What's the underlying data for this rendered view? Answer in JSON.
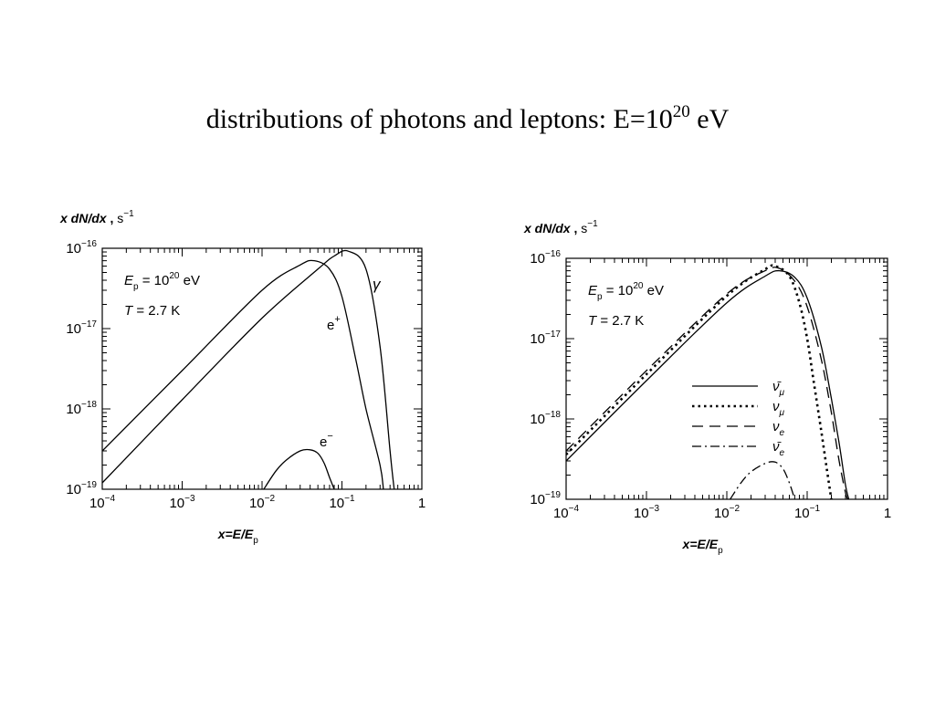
{
  "slide": {
    "title_prefix": "distributions of photons and leptons: E=10",
    "title_exp": "20",
    "title_suffix": " eV"
  },
  "chart_data": [
    {
      "type": "line",
      "ylabel": {
        "var": "x dN/dx",
        "sep": " , ",
        "unit_base": "s",
        "unit_exp": "−1"
      },
      "xlabel": {
        "var": "x=E/E",
        "sub": "p"
      },
      "x_log": true,
      "y_log": true,
      "xlim": [
        0.0001,
        1
      ],
      "ylim": [
        1e-19,
        1e-16
      ],
      "x_ticks": [
        {
          "base": "10",
          "exp": "−4"
        },
        {
          "base": "10",
          "exp": "−3"
        },
        {
          "base": "10",
          "exp": "−2"
        },
        {
          "base": "10",
          "exp": "−1"
        },
        {
          "base": "1",
          "exp": ""
        }
      ],
      "y_ticks": [
        {
          "base": "10",
          "exp": "−16"
        },
        {
          "base": "10",
          "exp": "−17"
        },
        {
          "base": "10",
          "exp": "−18"
        },
        {
          "base": "10",
          "exp": "−19"
        }
      ],
      "annotation": {
        "line1": {
          "var": "E",
          "sub": "p",
          "eq": " = 10",
          "exp": "20",
          "unit": " eV"
        },
        "line2": {
          "var": "T",
          "eq": " = 2.7 K"
        }
      },
      "series": [
        {
          "name": "γ",
          "label_base": "γ",
          "label_sup": "",
          "style": "solid",
          "x": [
            0.0001,
            0.001,
            0.01,
            0.05,
            0.08,
            0.12,
            0.2,
            0.3,
            0.4,
            0.45
          ],
          "y": [
            1.2e-19,
            1.3e-18,
            1.35e-17,
            5.5e-17,
            8e-17,
            9.2e-17,
            5.5e-17,
            6e-18,
            3e-19,
            1e-19
          ]
        },
        {
          "name": "e+",
          "label_base": "e",
          "label_sup": "+",
          "style": "solid",
          "x": [
            0.0001,
            0.001,
            0.01,
            0.03,
            0.045,
            0.07,
            0.1,
            0.15,
            0.2,
            0.3,
            0.33
          ],
          "y": [
            3e-19,
            3e-18,
            3e-17,
            6.2e-17,
            7e-17,
            5.5e-17,
            2.5e-17,
            4e-18,
            1e-18,
            2e-19,
            1e-19
          ]
        },
        {
          "name": "e−",
          "label_base": "e",
          "label_sup": "−",
          "style": "solid",
          "x": [
            0.0105,
            0.015,
            0.02,
            0.03,
            0.04,
            0.05,
            0.06,
            0.07,
            0.08
          ],
          "y": [
            1e-19,
            1.7e-19,
            2.3e-19,
            3e-19,
            3.1e-19,
            2.8e-19,
            2.1e-19,
            1.4e-19,
            1e-19
          ]
        }
      ]
    },
    {
      "type": "line",
      "ylabel": {
        "var": "x dN/dx",
        "sep": " , ",
        "unit_base": "s",
        "unit_exp": "−1"
      },
      "xlabel": {
        "var": "x=E/E",
        "sub": "p"
      },
      "x_log": true,
      "y_log": true,
      "xlim": [
        0.0001,
        1
      ],
      "ylim": [
        1e-19,
        1e-16
      ],
      "x_ticks": [
        {
          "base": "10",
          "exp": "−4"
        },
        {
          "base": "10",
          "exp": "−3"
        },
        {
          "base": "10",
          "exp": "−2"
        },
        {
          "base": "10",
          "exp": "−1"
        },
        {
          "base": "1",
          "exp": ""
        }
      ],
      "y_ticks": [
        {
          "base": "10",
          "exp": "−16"
        },
        {
          "base": "10",
          "exp": "−17"
        },
        {
          "base": "10",
          "exp": "−18"
        },
        {
          "base": "10",
          "exp": "−19"
        }
      ],
      "annotation": {
        "line1": {
          "var": "E",
          "sub": "p",
          "eq": " = 10",
          "exp": "20",
          "unit": " eV"
        },
        "line2": {
          "var": "T",
          "eq": " = 2.7 K"
        }
      },
      "legend_position": "center-right",
      "series": [
        {
          "name": "ν̄μ",
          "label_base": "ν̄",
          "label_sub": "μ",
          "style": "solid",
          "x": [
            0.0001,
            0.001,
            0.01,
            0.03,
            0.045,
            0.07,
            0.1,
            0.15,
            0.2,
            0.25,
            0.3,
            0.33
          ],
          "y": [
            3e-19,
            3e-18,
            2.8e-17,
            6e-17,
            7e-17,
            5.8e-17,
            3.2e-17,
            8e-18,
            1.8e-18,
            5e-19,
            1.5e-19,
            1e-19
          ]
        },
        {
          "name": "νμ",
          "label_base": "ν",
          "label_sub": "μ",
          "style": "dotted",
          "x": [
            0.0001,
            0.001,
            0.01,
            0.03,
            0.04,
            0.06,
            0.08,
            0.1,
            0.12,
            0.15,
            0.18,
            0.2
          ],
          "y": [
            3.6e-19,
            3.6e-18,
            3.4e-17,
            7.3e-17,
            8e-17,
            6e-17,
            2.8e-17,
            1e-17,
            3e-18,
            7e-19,
            2e-19,
            1e-19
          ]
        },
        {
          "name": "νe",
          "label_base": "ν",
          "label_sub": "e",
          "style": "dashed",
          "x": [
            0.0001,
            0.001,
            0.01,
            0.03,
            0.045,
            0.07,
            0.1,
            0.15,
            0.2,
            0.25,
            0.3,
            0.32
          ],
          "y": [
            4e-19,
            4e-18,
            3.6e-17,
            7e-17,
            7.5e-17,
            5.2e-17,
            2.5e-17,
            5.5e-18,
            1.2e-18,
            3e-19,
            1.2e-19,
            1e-19
          ]
        },
        {
          "name": "ν̄e",
          "label_base": "ν̄",
          "label_sub": "e",
          "style": "dashdot",
          "x": [
            0.011,
            0.015,
            0.02,
            0.03,
            0.04,
            0.05,
            0.06,
            0.07
          ],
          "y": [
            1e-19,
            1.6e-19,
            2.2e-19,
            2.8e-19,
            2.9e-19,
            2.4e-19,
            1.6e-19,
            1e-19
          ]
        }
      ]
    }
  ]
}
